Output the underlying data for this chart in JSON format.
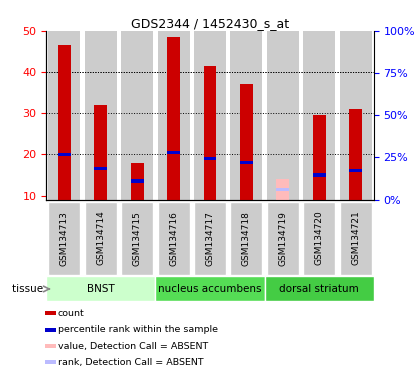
{
  "title": "GDS2344 / 1452430_s_at",
  "samples": [
    "GSM134713",
    "GSM134714",
    "GSM134715",
    "GSM134716",
    "GSM134717",
    "GSM134718",
    "GSM134719",
    "GSM134720",
    "GSM134721"
  ],
  "red_values": [
    46.5,
    32.0,
    18.0,
    48.5,
    41.5,
    37.0,
    null,
    29.5,
    31.0
  ],
  "blue_values": [
    20.0,
    16.5,
    13.5,
    20.5,
    19.0,
    18.0,
    null,
    15.0,
    16.0
  ],
  "absent_red": [
    null,
    null,
    null,
    null,
    null,
    null,
    14.0,
    null,
    null
  ],
  "absent_blue": [
    null,
    null,
    null,
    null,
    null,
    null,
    11.5,
    null,
    null
  ],
  "ylim": [
    9,
    50
  ],
  "yticks_left": [
    10,
    20,
    30,
    40,
    50
  ],
  "yticks_right_vals": [
    0,
    25,
    50,
    75,
    100
  ],
  "right_labels": [
    "0%",
    "25%",
    "50%",
    "75%",
    "100%"
  ],
  "tissue_groups": [
    {
      "label": "BNST",
      "start": 0,
      "end": 3,
      "color": "#ccffcc"
    },
    {
      "label": "nucleus accumbens",
      "start": 3,
      "end": 6,
      "color": "#55dd55"
    },
    {
      "label": "dorsal striatum",
      "start": 6,
      "end": 9,
      "color": "#44cc44"
    }
  ],
  "bar_width": 0.35,
  "red_color": "#cc0000",
  "blue_color": "#0000cc",
  "absent_red_color": "#ffbbbb",
  "absent_blue_color": "#bbbbff",
  "bg_bar_color": "#cccccc",
  "grid_ticks": [
    20,
    30,
    40
  ],
  "legend_items": [
    {
      "color": "#cc0000",
      "label": "count"
    },
    {
      "color": "#0000cc",
      "label": "percentile rank within the sample"
    },
    {
      "color": "#ffbbbb",
      "label": "value, Detection Call = ABSENT"
    },
    {
      "color": "#bbbbff",
      "label": "rank, Detection Call = ABSENT"
    }
  ]
}
